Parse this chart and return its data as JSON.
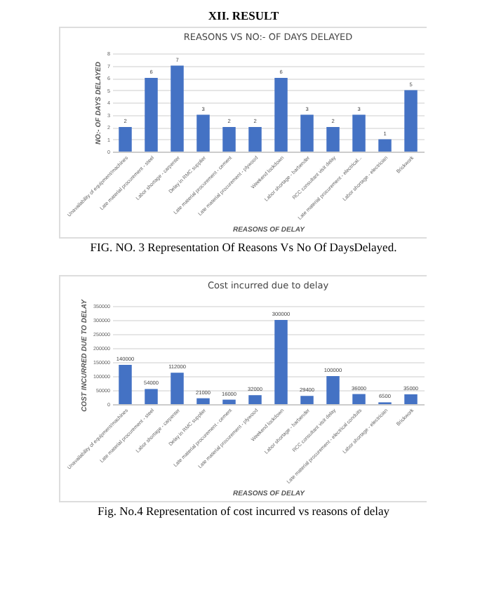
{
  "chart_data": [
    {
      "type": "bar",
      "title": "REASONS VS NO:- OF DAYS DELAYED",
      "xlabel": "REASONS OF DELAY",
      "ylabel": "NO:- OF DAYS DELAYED",
      "categories": [
        "Unavailability of equipment/machines",
        "Late material procurement - steel",
        "Labor shortage - carpenter",
        "Delay in RMC supplier",
        "Late material procurement - cement",
        "Late material procurement - plywood",
        "Weekend lockdown",
        "Labor shortage - barbender",
        "RCC consultant visit delay",
        "Late material procurement - electrical...",
        "Labor shortage - electrician",
        "Brickwork"
      ],
      "values": [
        2,
        6,
        7,
        3,
        2,
        2,
        6,
        3,
        2,
        3,
        1,
        5
      ],
      "color": "#4472c4",
      "ylim": [
        0,
        8
      ],
      "yticks": [
        0,
        1,
        2,
        3,
        4,
        5,
        6,
        7,
        8
      ],
      "grid": "y",
      "data_labels": true,
      "annotations": [
        "XII.  RESULT",
        "FIG. NO. 3  Representation Of Reasons Vs No Of DaysDelayed."
      ]
    },
    {
      "type": "bar",
      "title": "Cost incurred due to delay",
      "xlabel": "REASONS OF DELAY",
      "ylabel": "COST INCURRED DUE TO DELAY",
      "categories": [
        "Unavailability of equipment/machines",
        "Late material procurement - steel",
        "Labor shortage - carpenter",
        "Delay in RMC supplier",
        "Late material procurement - cement",
        "Late material procurement - plywood",
        "Weekend lockdown",
        "Labor shortage - barbender",
        "RCC consultant visit delay",
        "Late material procurement - electrical conduits",
        "Labor shortage - electrician",
        "Brickwork"
      ],
      "values": [
        140000,
        54000,
        112000,
        21000,
        16000,
        32000,
        300000,
        29400,
        100000,
        36000,
        6500,
        35000
      ],
      "color": "#4472c4",
      "ylim": [
        0,
        350000
      ],
      "yticks": [
        0,
        50000,
        100000,
        150000,
        200000,
        250000,
        300000,
        350000
      ],
      "grid": "y",
      "data_labels": true,
      "annotations": [
        "Fig. No.4 Representation of cost incurred vs reasons of delay"
      ]
    }
  ]
}
